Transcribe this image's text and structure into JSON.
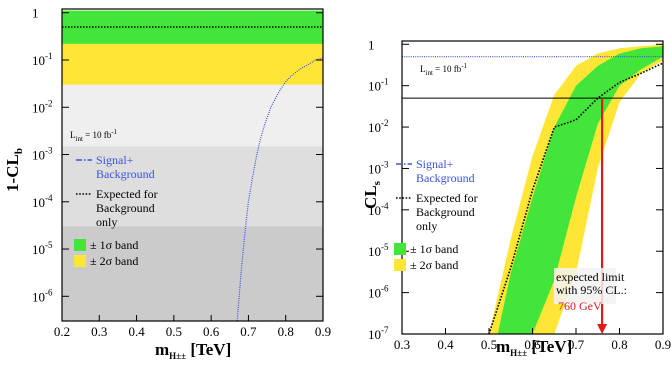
{
  "chart_data": [
    {
      "type": "line",
      "xlabel_main": "m",
      "xlabel_sub": "H±±",
      "xlabel_unit": "[TeV]",
      "ylabel_main": "1-CL",
      "ylabel_sub": "b",
      "xlim": [
        0.2,
        0.9
      ],
      "ylim": [
        3e-07,
        1.2
      ],
      "yscale": "log",
      "xticks": [
        "0.2",
        "0.3",
        "0.4",
        "0.5",
        "0.6",
        "0.7",
        "0.8",
        "0.9"
      ],
      "yticks": [
        {
          "base": "1",
          "exp": ""
        },
        {
          "base": "10",
          "exp": "-1"
        },
        {
          "base": "10",
          "exp": "-2"
        },
        {
          "base": "10",
          "exp": "-3"
        },
        {
          "base": "10",
          "exp": "-4"
        },
        {
          "base": "10",
          "exp": "-5"
        },
        {
          "base": "10",
          "exp": "-6"
        }
      ],
      "lumi": "L",
      "lumi_sub": "int",
      "lumi_val": "= 10 fb",
      "lumi_exp": "-1",
      "sigma_bands": [
        {
          "name": "± 1σ band",
          "lo": 0.22,
          "hi": 0.6,
          "color": "#44e53a"
        },
        {
          "name": "± 2σ band",
          "lo": 0.03,
          "hi": 0.6,
          "color": "#ffe636"
        }
      ],
      "significance_shading": [
        {
          "lo": 3e-07,
          "hi": 3e-05,
          "color": "#cbcbcb"
        },
        {
          "lo": 3e-05,
          "hi": 0.0015,
          "color": "#dedede"
        },
        {
          "lo": 0.0015,
          "hi": 0.03,
          "color": "#efefef"
        }
      ],
      "series": [
        {
          "name": "Signal+ Background",
          "name_lines": [
            "Signal+",
            "Background"
          ],
          "color": "#3a53e0",
          "x": [
            0.67,
            0.68,
            0.69,
            0.7,
            0.71,
            0.72,
            0.73,
            0.74,
            0.75,
            0.76,
            0.78,
            0.8,
            0.82,
            0.84,
            0.86,
            0.88,
            0.9
          ],
          "y": [
            3e-07,
            3e-06,
            2e-05,
            0.0001,
            0.0003,
            0.0008,
            0.0018,
            0.0035,
            0.006,
            0.01,
            0.02,
            0.035,
            0.05,
            0.065,
            0.08,
            0.1,
            0.11
          ]
        },
        {
          "name": "Expected for Background only",
          "name_lines": [
            "Expected for",
            "Background",
            "only"
          ],
          "color": "#000000",
          "x": [
            0.2,
            0.9
          ],
          "y": [
            0.5,
            0.5
          ]
        }
      ]
    },
    {
      "type": "line",
      "xlabel_main": "m",
      "xlabel_sub": "H±±",
      "xlabel_unit": "[TeV]",
      "ylabel_main": "CL",
      "ylabel_sub": "s",
      "xlim": [
        0.3,
        0.9
      ],
      "ylim": [
        1e-07,
        1.2
      ],
      "yscale": "log",
      "xticks": [
        "0.3",
        "0.4",
        "0.5",
        "0.6",
        "0.7",
        "0.8",
        "0.9"
      ],
      "yticks": [
        {
          "base": "1",
          "exp": ""
        },
        {
          "base": "10",
          "exp": "-1"
        },
        {
          "base": "10",
          "exp": "-2"
        },
        {
          "base": "10",
          "exp": "-3"
        },
        {
          "base": "10",
          "exp": "-4"
        },
        {
          "base": "10",
          "exp": "-5"
        },
        {
          "base": "10",
          "exp": "-6"
        },
        {
          "base": "10",
          "exp": "-7"
        }
      ],
      "lumi": "L",
      "lumi_sub": "int",
      "lumi_val": "= 10 fb",
      "lumi_exp": "-1",
      "cl_line": 0.05,
      "expected_limit_x": 0.76,
      "annotation_lines": [
        "expected limit",
        "with 95% CL.:"
      ],
      "annotation_value": "760 GeV",
      "annotation_color": "#e01b1b",
      "band_2sigma": {
        "name": "± 2σ band",
        "color": "#ffe636",
        "x": [
          0.5,
          0.55,
          0.6,
          0.65,
          0.7,
          0.75,
          0.8,
          0.85,
          0.9
        ],
        "lo": [
          1e-07,
          1e-07,
          1e-07,
          1e-07,
          3e-06,
          0.001,
          0.04,
          0.2,
          0.4
        ],
        "hi": [
          1e-07,
          2e-05,
          0.002,
          0.06,
          0.3,
          0.6,
          0.8,
          0.9,
          1
        ]
      },
      "band_1sigma": {
        "name": "± 1σ band",
        "color": "#44e53a",
        "x": [
          0.52,
          0.55,
          0.6,
          0.65,
          0.7,
          0.75,
          0.8,
          0.85,
          0.9
        ],
        "lo": [
          1e-07,
          1e-07,
          1e-07,
          2e-06,
          0.0002,
          0.012,
          0.1,
          0.25,
          0.5
        ],
        "hi": [
          1e-07,
          3e-06,
          0.0002,
          0.01,
          0.1,
          0.3,
          0.6,
          0.8,
          0.9
        ]
      },
      "series": [
        {
          "name": "Signal+ Background",
          "name_lines": [
            "Signal+",
            "Background"
          ],
          "color": "#3a53e0",
          "x": [
            0.3,
            0.9
          ],
          "y": [
            0.5,
            0.5
          ]
        },
        {
          "name": "Expected for Background only",
          "name_lines": [
            "Expected for",
            "Background",
            "only"
          ],
          "color": "#000000",
          "x": [
            0.5,
            0.55,
            0.6,
            0.65,
            0.7,
            0.75,
            0.8,
            0.85,
            0.9
          ],
          "y": [
            1e-07,
            4e-06,
            0.0003,
            0.01,
            0.015,
            0.05,
            0.12,
            0.2,
            0.35
          ]
        }
      ]
    }
  ]
}
